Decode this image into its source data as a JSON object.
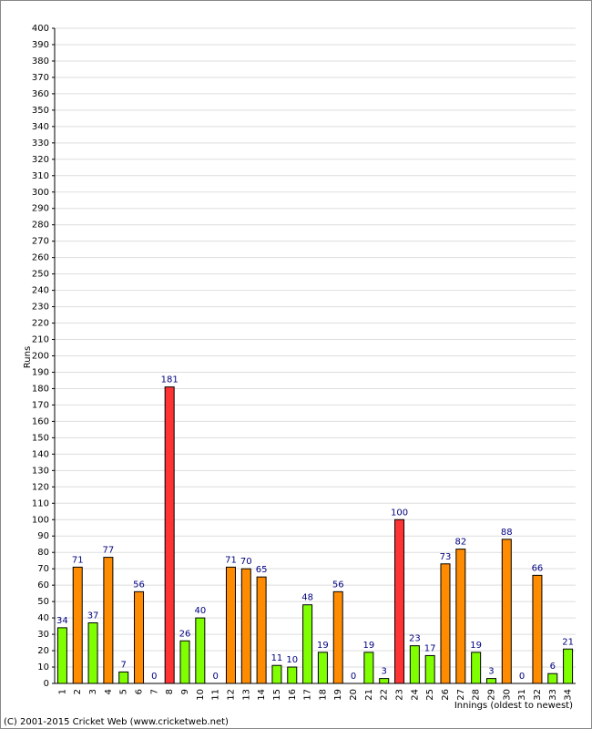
{
  "chart_data": {
    "type": "bar",
    "y_label": "Runs",
    "x_label": "Innings (oldest to newest)",
    "categories": [
      "1",
      "2",
      "3",
      "4",
      "5",
      "6",
      "7",
      "8",
      "9",
      "10",
      "11",
      "12",
      "13",
      "14",
      "15",
      "16",
      "17",
      "18",
      "19",
      "20",
      "21",
      "22",
      "23",
      "24",
      "25",
      "26",
      "27",
      "28",
      "29",
      "30",
      "31",
      "32",
      "33",
      "34"
    ],
    "values": [
      34,
      71,
      37,
      77,
      7,
      56,
      0,
      181,
      26,
      40,
      0,
      71,
      70,
      65,
      11,
      10,
      48,
      19,
      56,
      0,
      19,
      3,
      100,
      23,
      17,
      73,
      82,
      19,
      3,
      88,
      0,
      66,
      6,
      21
    ],
    "colors": [
      "#80ff00",
      "#ff8c00",
      "#80ff00",
      "#ff8c00",
      "#80ff00",
      "#ff8c00",
      "#80ff00",
      "#ff3333",
      "#80ff00",
      "#80ff00",
      "#80ff00",
      "#ff8c00",
      "#ff8c00",
      "#ff8c00",
      "#80ff00",
      "#80ff00",
      "#80ff00",
      "#80ff00",
      "#ff8c00",
      "#80ff00",
      "#80ff00",
      "#80ff00",
      "#ff3333",
      "#80ff00",
      "#80ff00",
      "#ff8c00",
      "#ff8c00",
      "#80ff00",
      "#80ff00",
      "#ff8c00",
      "#80ff00",
      "#ff8c00",
      "#80ff00",
      "#80ff00"
    ],
    "ylim": [
      0,
      400
    ],
    "yticks": [
      0,
      10,
      20,
      30,
      40,
      50,
      60,
      70,
      80,
      90,
      100,
      110,
      120,
      130,
      140,
      150,
      160,
      170,
      180,
      190,
      200,
      210,
      220,
      230,
      240,
      250,
      260,
      270,
      280,
      290,
      300,
      310,
      320,
      330,
      340,
      350,
      360,
      370,
      380,
      390,
      400
    ],
    "grid": true
  },
  "footer": "(C) 2001-2015 Cricket Web (www.cricketweb.net)"
}
